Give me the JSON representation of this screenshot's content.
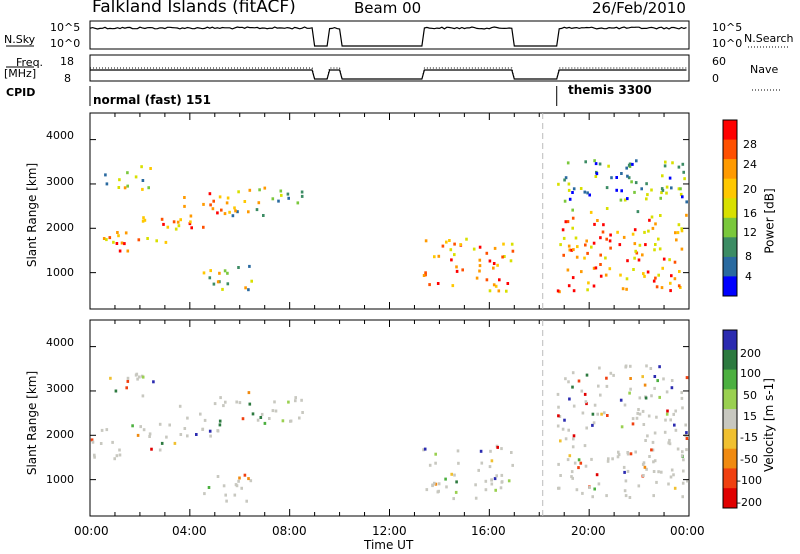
{
  "header": {
    "station": "Falkland Islands (fitACF)",
    "beam": "Beam 00",
    "date": "26/Feb/2010"
  },
  "top_panels": {
    "nsky_label": "N.Sky",
    "nsky_ticks": [
      "10^5",
      "10^0"
    ],
    "nsearch_label": "N.Search",
    "freq_label": "Freq.",
    "freq_unit": "[MHz]",
    "freq_ticks": [
      "18",
      "8"
    ],
    "nave_ticks": [
      "60",
      "0"
    ],
    "nave_label": "Nave",
    "cpid_label": "CPID",
    "cpid_modes": [
      "normal (fast) 151",
      "themis 3300"
    ]
  },
  "axes": {
    "ylabel": "Slant Range [km]",
    "xlabel": "Time UT",
    "y_ticks": [
      "4000",
      "3000",
      "2000",
      "1000"
    ],
    "x_ticks": [
      "00:00",
      "04:00",
      "08:00",
      "12:00",
      "16:00",
      "20:00",
      "00:00"
    ]
  },
  "power_scale": {
    "label": "Power [dB]",
    "ticks": [
      "28",
      "24",
      "20",
      "16",
      "12",
      "8",
      "4"
    ],
    "colors": [
      "#ff0000",
      "#ff5000",
      "#ff9a00",
      "#ffc800",
      "#d8e000",
      "#7ac83c",
      "#3c8c64",
      "#2a6aa0",
      "#0000ff"
    ]
  },
  "velocity_scale": {
    "label": "Velocity [m s-1]",
    "ticks": [
      "200",
      "100",
      "50",
      "15",
      "-15",
      "-50",
      "-100",
      "-200"
    ],
    "colors": [
      "#2b2bb0",
      "#2d7a40",
      "#4cb040",
      "#9ad050",
      "#c8c8c0",
      "#f0c030",
      "#f08a10",
      "#f04010",
      "#e00000"
    ]
  },
  "chart_data": {
    "type": "heatmap",
    "x_range_hours": [
      0,
      24
    ],
    "y_range_km": [
      180,
      4600
    ],
    "observation_gaps_hours": [
      [
        8.9,
        9.5
      ],
      [
        10.0,
        13.3
      ],
      [
        16.9,
        18.7
      ]
    ],
    "mode_change_hour": 18.7,
    "power_scatter_regions": [
      {
        "t": [
          0.0,
          1.5
        ],
        "km": [
          1500,
          2200
        ],
        "level": "high"
      },
      {
        "t": [
          1.5,
          3.5
        ],
        "km": [
          1700,
          2300
        ],
        "level": "high"
      },
      {
        "t": [
          3.5,
          5.5
        ],
        "km": [
          2000,
          2900
        ],
        "level": "high"
      },
      {
        "t": [
          5.5,
          8.5
        ],
        "km": [
          2300,
          3000
        ],
        "level": "medium"
      },
      {
        "t": [
          0.5,
          2.5
        ],
        "km": [
          2900,
          3500
        ],
        "level": "medium"
      },
      {
        "t": [
          4.5,
          6.5
        ],
        "km": [
          500,
          1200
        ],
        "level": "medium"
      },
      {
        "t": [
          13.3,
          16.9
        ],
        "km": [
          600,
          1800
        ],
        "level": "high"
      },
      {
        "t": [
          18.7,
          24.0
        ],
        "km": [
          600,
          2400
        ],
        "level": "high"
      },
      {
        "t": [
          18.7,
          24.0
        ],
        "km": [
          2400,
          3600
        ],
        "level": "low"
      }
    ]
  }
}
